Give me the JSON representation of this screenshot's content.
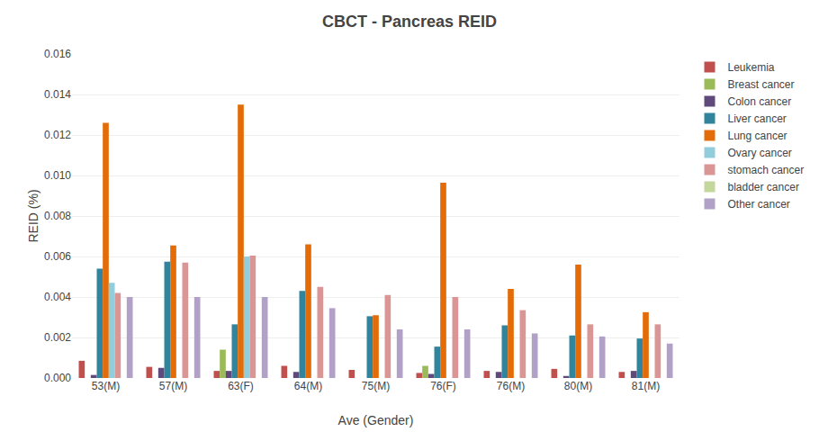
{
  "chart_data": {
    "type": "bar",
    "title": "CBCT - Pancreas REID",
    "xlabel": "Ave (Gender)",
    "ylabel": "REID (%)",
    "categories": [
      "53(M)",
      "57(M)",
      "63(F)",
      "64(M)",
      "75(M)",
      "76(F)",
      "76(M)",
      "80(M)",
      "81(M)"
    ],
    "series": [
      {
        "name": "Leukemia",
        "color": "#C0504D",
        "values": [
          0.00085,
          0.00055,
          0.00035,
          0.0006,
          0.0004,
          0.00025,
          0.00035,
          0.00045,
          0.0003
        ]
      },
      {
        "name": "Breast cancer",
        "color": "#9BBB59",
        "values": [
          0.0,
          0.0,
          0.0014,
          0.0,
          0.0,
          0.0006,
          0.0,
          0.0,
          0.0
        ]
      },
      {
        "name": "Colon cancer",
        "color": "#604A7B",
        "values": [
          0.00015,
          0.0005,
          0.00035,
          0.0003,
          0.0,
          0.0002,
          0.0003,
          0.0001,
          0.00035
        ]
      },
      {
        "name": "Liver cancer",
        "color": "#31849B",
        "values": [
          0.0054,
          0.00575,
          0.00265,
          0.0043,
          0.00305,
          0.00155,
          0.0026,
          0.0021,
          0.00195
        ]
      },
      {
        "name": "Lung cancer",
        "color": "#E36C09",
        "values": [
          0.0126,
          0.00655,
          0.0135,
          0.0066,
          0.0031,
          0.00965,
          0.0044,
          0.0056,
          0.00325
        ]
      },
      {
        "name": "Ovary cancer",
        "color": "#92CDDC",
        "values": [
          0.0047,
          0.0,
          0.006,
          0.0,
          0.0,
          0.0,
          0.0,
          0.0,
          0.0
        ]
      },
      {
        "name": "stomach cancer",
        "color": "#D99694",
        "values": [
          0.0042,
          0.0057,
          0.00605,
          0.0045,
          0.0041,
          0.004,
          0.00335,
          0.00265,
          0.00265
        ]
      },
      {
        "name": "bladder cancer",
        "color": "#C3D69B",
        "values": [
          0.0,
          0.0,
          0.0,
          0.0,
          0.0,
          0.0,
          0.0,
          0.0,
          0.0
        ]
      },
      {
        "name": "Other cancer",
        "color": "#B2A1C7",
        "values": [
          0.004,
          0.004,
          0.004,
          0.00345,
          0.0024,
          0.0024,
          0.0022,
          0.00205,
          0.0017
        ]
      }
    ],
    "ylim": [
      0,
      0.016
    ],
    "yticks": [
      {
        "value": 0.0,
        "label": "0.000"
      },
      {
        "value": 0.002,
        "label": "0.002"
      },
      {
        "value": 0.004,
        "label": "0.004"
      },
      {
        "value": 0.006,
        "label": "0.006"
      },
      {
        "value": 0.008,
        "label": "0.008"
      },
      {
        "value": 0.01,
        "label": "0.010"
      },
      {
        "value": 0.012,
        "label": "0.012"
      },
      {
        "value": 0.014,
        "label": "0.014"
      },
      {
        "value": 0.016,
        "label": "0.016"
      }
    ],
    "grid": true,
    "legend": "right"
  }
}
